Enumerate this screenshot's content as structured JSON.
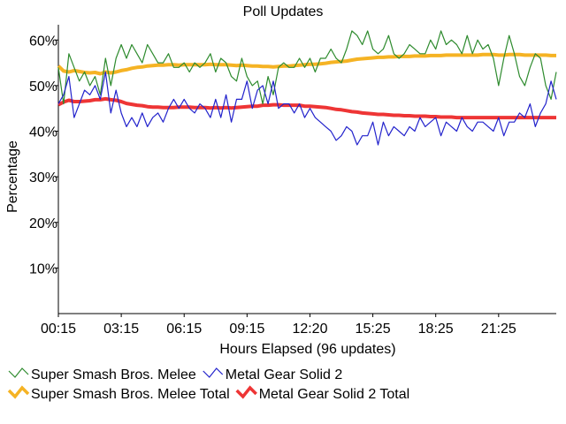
{
  "chart_data": {
    "type": "line",
    "title": "Poll Updates",
    "xlabel": "Hours Elapsed (96 updates)",
    "ylabel": "Percentage",
    "ylim": [
      0,
      62
    ],
    "y_ticks": [
      10,
      20,
      30,
      40,
      50,
      60
    ],
    "y_tick_labels": [
      "10%",
      "20%",
      "30%",
      "40%",
      "50%",
      "60%"
    ],
    "x_ticks": [
      {
        "index": 0,
        "label": "00:15"
      },
      {
        "index": 12,
        "label": "03:15"
      },
      {
        "index": 24,
        "label": "06:15"
      },
      {
        "index": 36,
        "label": "09:15"
      },
      {
        "index": 48,
        "label": "12:20"
      },
      {
        "index": 60,
        "label": "15:25"
      },
      {
        "index": 72,
        "label": "18:25"
      },
      {
        "index": 84,
        "label": "21:25"
      }
    ],
    "grid": false,
    "legend_position": "bottom-left",
    "series": [
      {
        "name": "Super Smash Bros. Melee",
        "color": "#2e8b2e",
        "style": "thin",
        "values": [
          54,
          46,
          57,
          54,
          51,
          53,
          50,
          52,
          48,
          56,
          50,
          56,
          59,
          56,
          59,
          57,
          55,
          59,
          57,
          55,
          55,
          57,
          54,
          54,
          55,
          53,
          55,
          54,
          55,
          57,
          53,
          56,
          55,
          52,
          51,
          56,
          52,
          50,
          51,
          46,
          52,
          48,
          54,
          55,
          54,
          54,
          56,
          54,
          56,
          53,
          56,
          56,
          58,
          56,
          55,
          58,
          62,
          61,
          59,
          62,
          58,
          57,
          58,
          61,
          57,
          56,
          57,
          59,
          58,
          57,
          57,
          60,
          58,
          62,
          59,
          60,
          59,
          57,
          61,
          57,
          60,
          58,
          59,
          56,
          50,
          56,
          61,
          57,
          52,
          50,
          54,
          57,
          56,
          50,
          47,
          53
        ]
      },
      {
        "name": "Metal Gear Solid 2",
        "color": "#2323cc",
        "style": "thin",
        "values": [
          46,
          48,
          52,
          43,
          46,
          49,
          48,
          50,
          47,
          53,
          44,
          49,
          44,
          41,
          43,
          41,
          44,
          41,
          43,
          44,
          42,
          45,
          47,
          45,
          47,
          45,
          44,
          46,
          45,
          43,
          47,
          43,
          48,
          42,
          47,
          47,
          51,
          45,
          49,
          50,
          46,
          51,
          45,
          46,
          46,
          44,
          46,
          43,
          45,
          43,
          42,
          41,
          40,
          38,
          39,
          41,
          40,
          37,
          39,
          39,
          42,
          37,
          42,
          39,
          41,
          40,
          39,
          41,
          40,
          43,
          41,
          42,
          43,
          39,
          42,
          41,
          40,
          43,
          41,
          40,
          42,
          42,
          41,
          40,
          43,
          39,
          42,
          42,
          44,
          43,
          46,
          41,
          44,
          46,
          51,
          47
        ]
      },
      {
        "name": "Super Smash Bros. Melee Total",
        "color": "#f5b324",
        "style": "thick",
        "values": [
          54.3,
          53.2,
          53.0,
          53.3,
          53.1,
          52.9,
          52.8,
          52.9,
          52.6,
          53.0,
          52.8,
          53.0,
          53.3,
          53.5,
          53.8,
          54.0,
          54.1,
          54.3,
          54.4,
          54.5,
          54.5,
          54.6,
          54.6,
          54.5,
          54.6,
          54.6,
          54.6,
          54.6,
          54.6,
          54.7,
          54.6,
          54.6,
          54.6,
          54.5,
          54.4,
          54.5,
          54.4,
          54.3,
          54.3,
          54.2,
          54.2,
          54.1,
          54.2,
          54.3,
          54.3,
          54.4,
          54.5,
          54.6,
          54.7,
          54.7,
          54.8,
          54.9,
          55.1,
          55.2,
          55.3,
          55.4,
          55.6,
          55.8,
          55.9,
          56.0,
          56.1,
          56.2,
          56.2,
          56.3,
          56.3,
          56.4,
          56.4,
          56.4,
          56.5,
          56.5,
          56.5,
          56.6,
          56.6,
          56.6,
          56.7,
          56.7,
          56.7,
          56.7,
          56.7,
          56.7,
          56.7,
          56.8,
          56.8,
          56.8,
          56.7,
          56.7,
          56.8,
          56.8,
          56.8,
          56.7,
          56.7,
          56.7,
          56.7,
          56.7,
          56.6,
          56.6
        ]
      },
      {
        "name": "Metal Gear Solid 2 Total",
        "color": "#ee3535",
        "style": "thick",
        "values": [
          45.8,
          46.4,
          46.8,
          46.5,
          46.5,
          46.6,
          46.7,
          46.9,
          46.9,
          47.1,
          46.9,
          46.8,
          46.5,
          46.1,
          45.9,
          45.7,
          45.6,
          45.4,
          45.3,
          45.3,
          45.2,
          45.2,
          45.2,
          45.3,
          45.3,
          45.3,
          45.2,
          45.2,
          45.2,
          45.1,
          45.2,
          45.1,
          45.2,
          45.1,
          45.2,
          45.3,
          45.4,
          45.5,
          45.5,
          45.7,
          45.7,
          45.8,
          45.8,
          45.7,
          45.7,
          45.7,
          45.7,
          45.5,
          45.5,
          45.4,
          45.3,
          45.2,
          45.0,
          44.8,
          44.7,
          44.5,
          44.3,
          44.2,
          44.0,
          43.9,
          43.8,
          43.7,
          43.7,
          43.6,
          43.5,
          43.5,
          43.4,
          43.4,
          43.3,
          43.3,
          43.3,
          43.2,
          43.2,
          43.1,
          43.1,
          43.1,
          43.0,
          43.0,
          43.0,
          43.0,
          43.0,
          43.0,
          43.0,
          43.0,
          43.0,
          43.0,
          43.0,
          43.0,
          43.0,
          43.0,
          43.0,
          43.0,
          43.0,
          43.0,
          43.0,
          43.0
        ]
      }
    ]
  },
  "legend": {
    "rows": [
      [
        0,
        1
      ],
      [
        2,
        3
      ]
    ]
  }
}
